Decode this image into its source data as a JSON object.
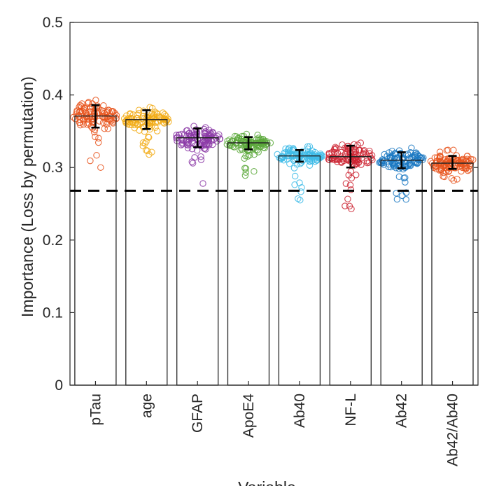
{
  "chart_data": {
    "type": "bar",
    "ylabel": "Importance (Loss by permutation)",
    "xlabel": "Variable",
    "ylim": [
      0,
      0.5
    ],
    "yticks": [
      "0",
      "0.1",
      "0.2",
      "0.3",
      "0.4",
      "0.5"
    ],
    "ytick_values": [
      0,
      0.1,
      0.2,
      0.3,
      0.4,
      0.5
    ],
    "reference_line": 0.268,
    "grid": false,
    "categories": [
      "pTau",
      "age",
      "GFAP",
      "ApoE4",
      "Ab40",
      "NF-L",
      "Ab42",
      "Ab42/Ab40"
    ],
    "values": [
      0.371,
      0.366,
      0.341,
      0.334,
      0.316,
      0.315,
      0.31,
      0.306
    ],
    "error_low": [
      0.355,
      0.353,
      0.328,
      0.325,
      0.308,
      0.3,
      0.299,
      0.298
    ],
    "error_high": [
      0.386,
      0.379,
      0.354,
      0.342,
      0.324,
      0.33,
      0.321,
      0.316
    ],
    "spread_min": [
      0.3,
      0.318,
      0.278,
      0.289,
      0.255,
      0.243,
      0.256,
      0.282
    ],
    "spread_max": [
      0.393,
      0.383,
      0.357,
      0.346,
      0.329,
      0.334,
      0.327,
      0.324
    ],
    "colors": [
      "#e8541c",
      "#f2ab16",
      "#8c3ba7",
      "#5aa83a",
      "#3dbbe8",
      "#cc2532",
      "#1a78c2",
      "#e8541c"
    ]
  }
}
